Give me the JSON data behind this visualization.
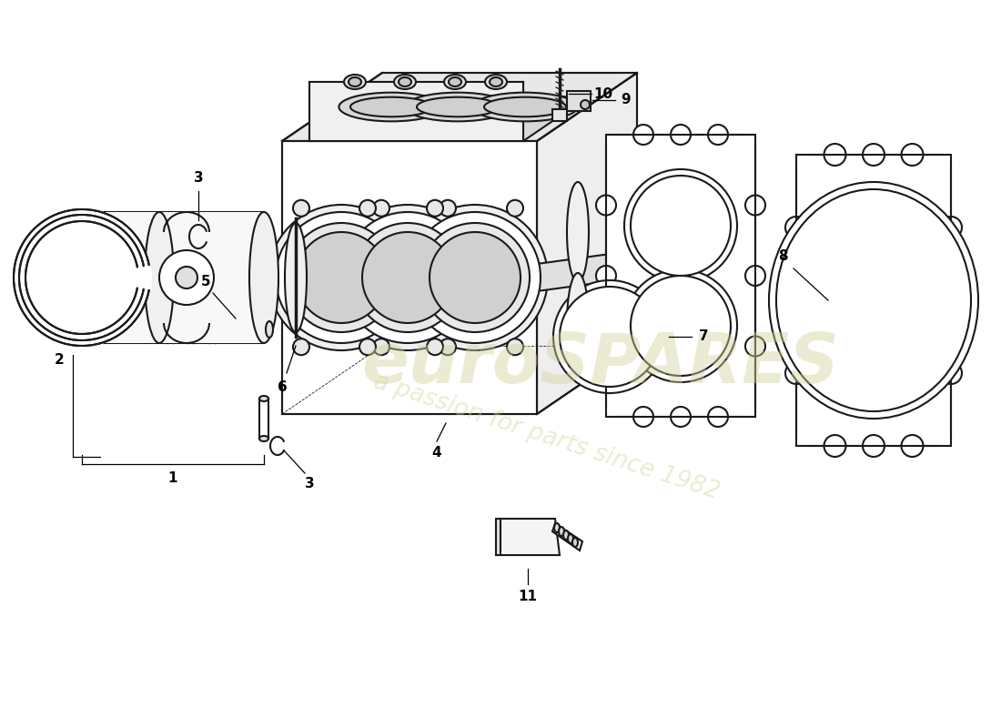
{
  "background_color": "#ffffff",
  "line_color": "#1a1a1a",
  "line_width": 1.5,
  "watermark1": "euroSPARES",
  "watermark2": "a passion for parts since 1982",
  "watermark_color": "#d4d4a0",
  "figsize": [
    11.0,
    8.0
  ],
  "dpi": 100
}
